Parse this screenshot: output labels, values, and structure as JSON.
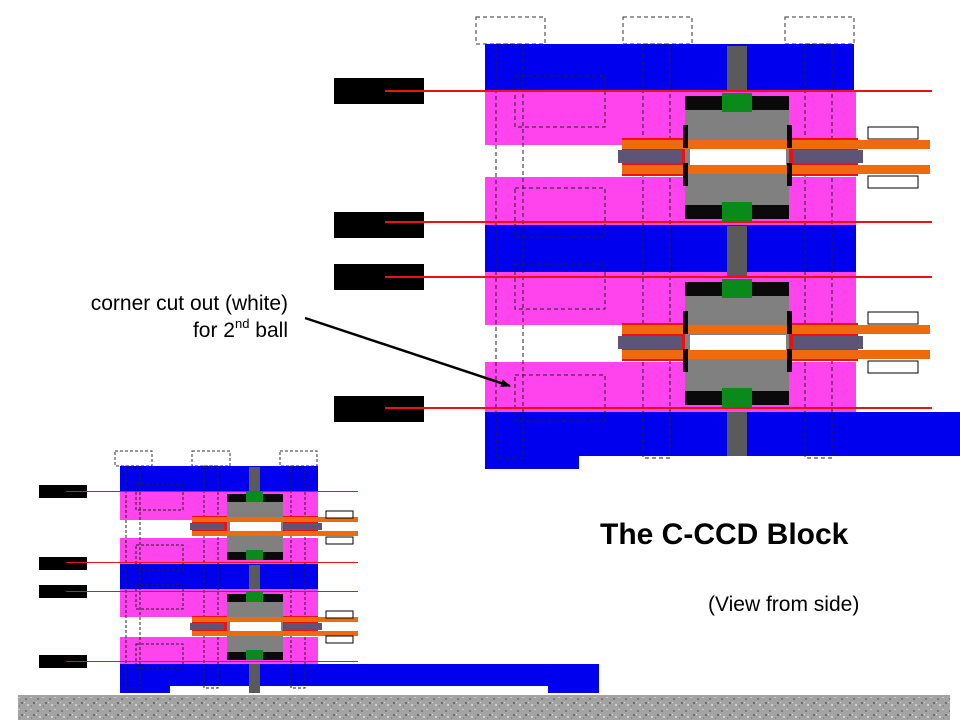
{
  "title": "The C-CCD Block",
  "subtitle": "(View from side)",
  "annotation": {
    "line1": "corner cut out (white)",
    "line2_prefix": "for 2",
    "line2_sup": "nd",
    "line2_suffix": " ball"
  },
  "colors": {
    "plate": "#0000ee",
    "spacer": "#ff44ee",
    "beam_line": "#ee1111",
    "tab": "#000000",
    "ccd_body": "#808080",
    "ccd_cap": "#0a0a0a",
    "ccd_chip": "#0a8a1a",
    "post": "#5a5a5a",
    "rod": "#ee6a0e",
    "clamp": "#5c5578",
    "rails": "#cc2222",
    "outline": "#333333",
    "ground": "#9a9a9a"
  },
  "icons": [
    "arrow-icon"
  ]
}
